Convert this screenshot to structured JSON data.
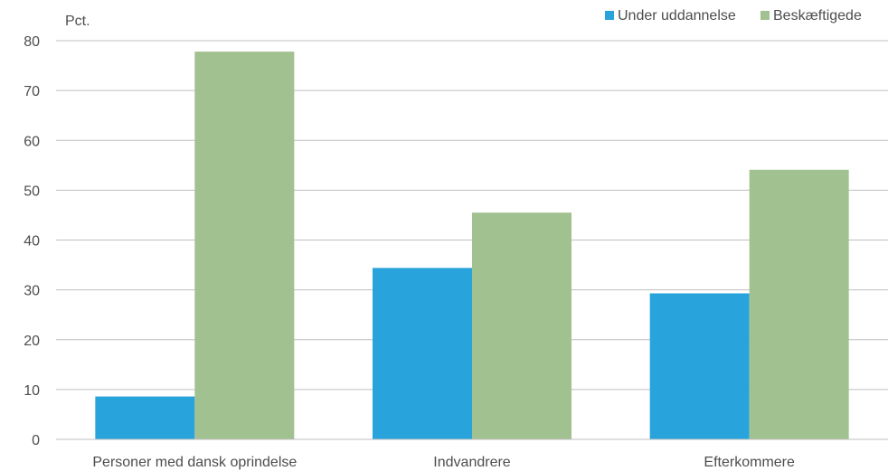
{
  "chart_data": {
    "type": "bar",
    "unit_label": "Pct.",
    "categories": [
      "Personer med dansk oprindelse",
      "Indvandrere",
      "Efterkommere"
    ],
    "series": [
      {
        "name": "Under uddannelse",
        "values": [
          8.6,
          34.4,
          29.3
        ],
        "color": "#29a3dc"
      },
      {
        "name": "Beskæftigede",
        "values": [
          77.8,
          45.5,
          54.1
        ],
        "color": "#a2c191"
      }
    ],
    "ylim": [
      0,
      80
    ],
    "yticks": [
      0,
      10,
      20,
      30,
      40,
      50,
      60,
      70,
      80
    ],
    "grid": true,
    "legend": "top-right"
  }
}
